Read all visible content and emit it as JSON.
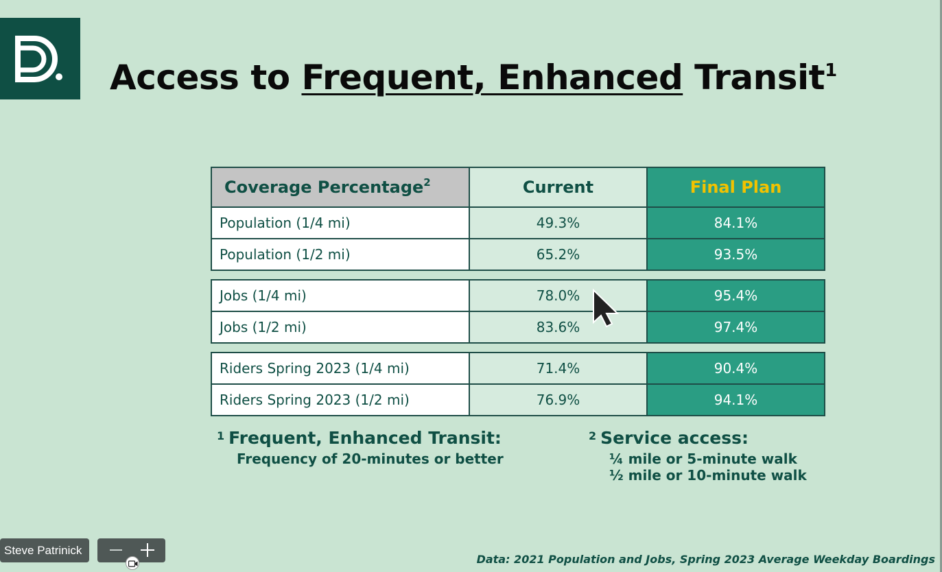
{
  "slide": {
    "title_prefix": "Access to ",
    "title_underlined": "Frequent, Enhanced",
    "title_suffix": " Transit",
    "title_sup": "1"
  },
  "table": {
    "headers": {
      "metric": "Coverage Percentage",
      "metric_sup": "2",
      "current": "Current",
      "final": "Final Plan"
    },
    "rows": [
      {
        "metric": "Population (1/4 mi)",
        "current": "49.3%",
        "final": "84.1%"
      },
      {
        "metric": "Population (1/2 mi)",
        "current": "65.2%",
        "final": "93.5%"
      },
      {
        "metric": "Jobs (1/4 mi)",
        "current": "78.0%",
        "final": "95.4%"
      },
      {
        "metric": "Jobs (1/2 mi)",
        "current": "83.6%",
        "final": "97.4%"
      },
      {
        "metric": "Riders Spring 2023 (1/4 mi)",
        "current": "71.4%",
        "final": "90.4%"
      },
      {
        "metric": "Riders Spring 2023 (1/2 mi)",
        "current": "76.9%",
        "final": "94.1%"
      }
    ]
  },
  "footnotes": {
    "fn1": {
      "num": "1",
      "heading": "Frequent, Enhanced Transit:",
      "lines": [
        "Frequency of 20-minutes or better"
      ]
    },
    "fn2": {
      "num": "2",
      "heading": "Service access:",
      "lines": [
        "¼ mile or 5-minute walk",
        "½ mile or 10-minute walk"
      ]
    }
  },
  "source_note": "Data: 2021 Population and Jobs, Spring 2023 Average Weekday Boardings",
  "meeting": {
    "speaker_name": "Steve Patrinick"
  },
  "colors": {
    "background": "#c9e4d2",
    "logo_bg": "#0f4f44",
    "final_plan_bg": "#2a9d83",
    "final_plan_header_text": "#f2c200",
    "current_bg": "#d6ebde",
    "metric_header_bg": "#c4c4c4"
  },
  "icons": {
    "logo": "dd-logo-icon",
    "cursor": "mouse-pointer-icon",
    "camera": "video-camera-icon"
  }
}
